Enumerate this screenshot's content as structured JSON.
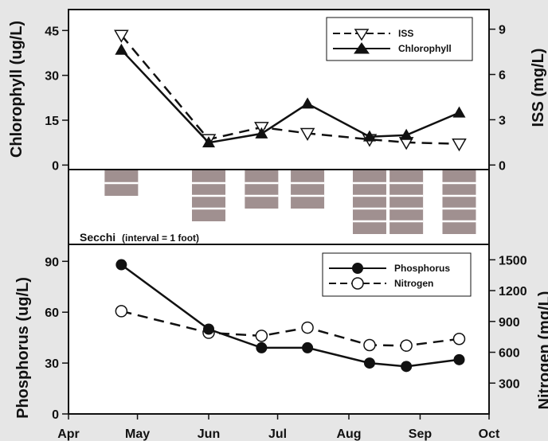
{
  "chart_data": [
    {
      "type": "line",
      "panel": "top",
      "ylabel": "Chlorophyll (ug/L)",
      "y2label": "ISS (mg/L)",
      "ylim": [
        0,
        50
      ],
      "yticks": [
        0,
        15,
        30,
        45
      ],
      "y2lim": [
        0,
        10
      ],
      "y2ticks": [
        0,
        3,
        6,
        9
      ],
      "legend_position": "top-right",
      "series": [
        {
          "name": "ISS",
          "axis": "right",
          "style": "dashed",
          "marker": "open-triangle-down",
          "x": [
            "2000-04-24",
            "2000-06-01",
            "2000-06-24",
            "2000-07-14",
            "2000-08-10",
            "2000-08-26",
            "2000-09-18"
          ],
          "values": [
            8.6,
            1.7,
            2.5,
            2.1,
            1.7,
            1.5,
            1.4
          ]
        },
        {
          "name": "Chlorophyll",
          "axis": "left",
          "style": "solid",
          "marker": "filled-triangle-up",
          "x": [
            "2000-04-24",
            "2000-06-01",
            "2000-06-24",
            "2000-07-14",
            "2000-08-10",
            "2000-08-26",
            "2000-09-18"
          ],
          "values": [
            38.5,
            7.5,
            10.5,
            20.5,
            9.5,
            10.0,
            17.5
          ]
        }
      ]
    },
    {
      "type": "bar",
      "panel": "middle",
      "title": "Secchi",
      "subtitle": "(interval = 1 foot)",
      "orientation": "downward",
      "x": [
        "2000-04-24",
        "2000-06-01",
        "2000-06-24",
        "2000-07-14",
        "2000-08-10",
        "2000-08-26",
        "2000-09-18"
      ],
      "values_feet": [
        2,
        4,
        3,
        3,
        5,
        5,
        5
      ]
    },
    {
      "type": "line",
      "panel": "bottom",
      "ylabel": "Phosphorus (ug/L)",
      "y2label": "Nitrogen (mg/L)",
      "ylim": [
        0,
        100
      ],
      "yticks": [
        0,
        30,
        60,
        90
      ],
      "y2lim": [
        0,
        1650
      ],
      "y2ticks": [
        300,
        600,
        900,
        1200,
        1500
      ],
      "legend_position": "top-right",
      "x_tick_labels": [
        "Apr",
        "May",
        "Jun",
        "Jul",
        "Aug",
        "Sep",
        "Oct"
      ],
      "series": [
        {
          "name": "Phosphorus",
          "axis": "left",
          "style": "solid",
          "marker": "filled-circle",
          "x": [
            "2000-04-24",
            "2000-06-01",
            "2000-06-24",
            "2000-07-14",
            "2000-08-10",
            "2000-08-26",
            "2000-09-18"
          ],
          "values": [
            88,
            50,
            39,
            39,
            30,
            28,
            32
          ]
        },
        {
          "name": "Nitrogen",
          "axis": "right",
          "style": "dashed",
          "marker": "open-circle",
          "x": [
            "2000-04-24",
            "2000-06-01",
            "2000-06-24",
            "2000-07-14",
            "2000-08-10",
            "2000-08-26",
            "2000-09-18"
          ],
          "values": [
            1000,
            790,
            760,
            840,
            670,
            665,
            730
          ]
        }
      ]
    }
  ],
  "colors": {
    "background": "#e6e6e6",
    "line": "#111111",
    "secchi_bar": "#a09090",
    "secchi_divider": "#ffffff"
  }
}
